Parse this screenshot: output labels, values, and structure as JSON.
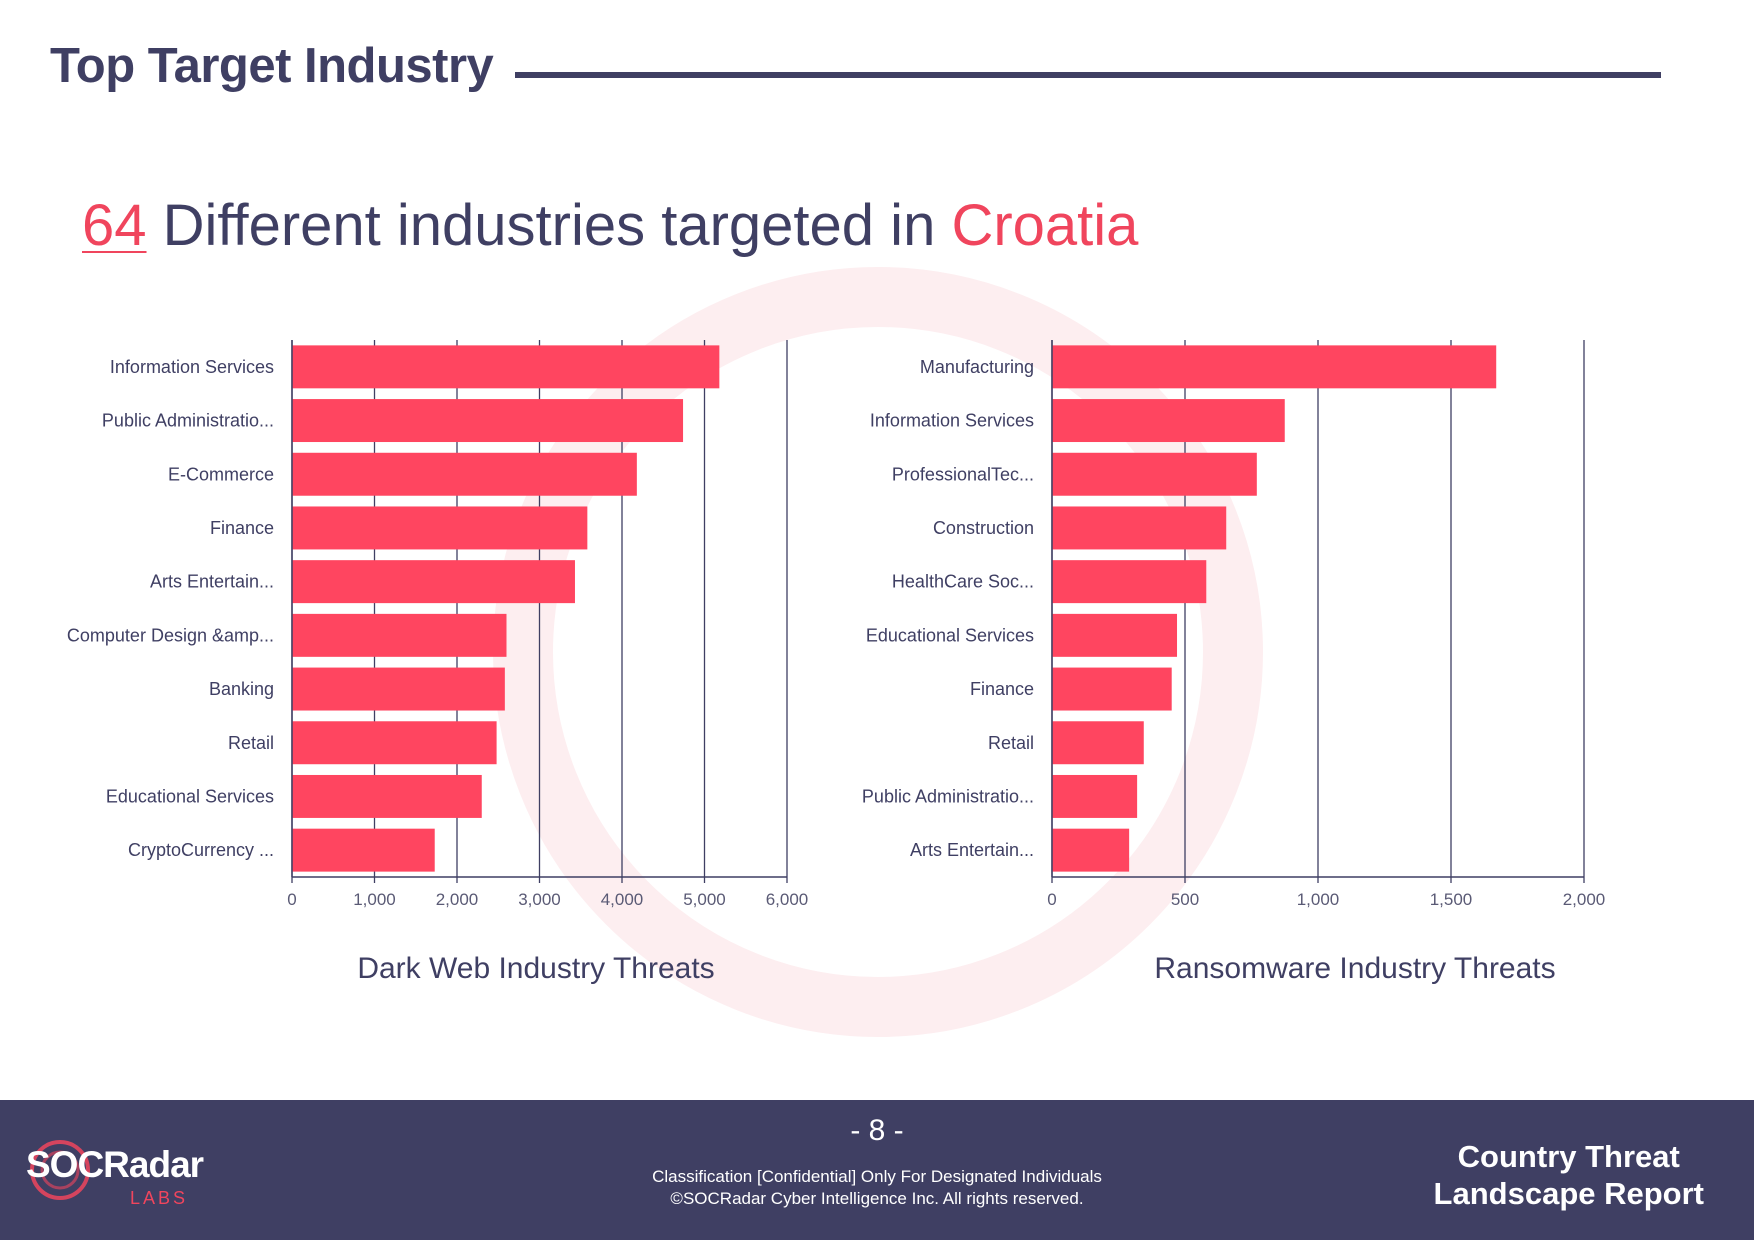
{
  "page": {
    "title": "Top Target Industry",
    "headline_count": "64",
    "headline_text": " Different industries targeted in ",
    "headline_country": "Croatia"
  },
  "colors": {
    "bar": "#ff4560",
    "accent": "#f0455d",
    "navy": "#3f3f63"
  },
  "chart_data": [
    {
      "type": "bar",
      "orientation": "horizontal",
      "title": "Dark Web Industry Threats",
      "categories": [
        "Information Services",
        "Public Administratio...",
        "E-Commerce",
        "Finance",
        "Arts  Entertain...",
        "Computer Design &amp...",
        "Banking",
        "Retail",
        "Educational Services",
        "CryptoCurrency ..."
      ],
      "values": [
        5180,
        4740,
        4180,
        3580,
        3430,
        2600,
        2580,
        2480,
        2300,
        1730
      ],
      "xlim": [
        0,
        6000
      ],
      "xticks": [
        0,
        1000,
        2000,
        3000,
        4000,
        5000,
        6000
      ],
      "xtick_labels": [
        "0",
        "1,000",
        "2,000",
        "3,000",
        "4,000",
        "5,000",
        "6,000"
      ],
      "grid": true
    },
    {
      "type": "bar",
      "orientation": "horizontal",
      "title": "Ransomware Industry Threats",
      "categories": [
        "Manufacturing",
        "Information Services",
        "ProfessionalTec...",
        "Construction",
        "HealthCare  Soc...",
        "Educational Services",
        "Finance",
        "Retail",
        "Public Administratio...",
        "Arts  Entertain..."
      ],
      "values": [
        1670,
        875,
        770,
        655,
        580,
        470,
        450,
        345,
        320,
        290
      ],
      "xlim": [
        0,
        2000
      ],
      "xticks": [
        0,
        500,
        1000,
        1500,
        2000
      ],
      "xtick_labels": [
        "0",
        "500",
        "1,000",
        "1,500",
        "2,000"
      ],
      "grid": true
    }
  ],
  "footer": {
    "page_number": "- 8 -",
    "classification": "Classification [Confidential] Only For Designated Individuals",
    "copyright": "©SOCRadar Cyber Intelligence Inc. All rights reserved.",
    "report_title_line1": "Country Threat",
    "report_title_line2": "Landscape Report",
    "logo_text": "SOCRadar",
    "logo_sub": "LABS"
  }
}
